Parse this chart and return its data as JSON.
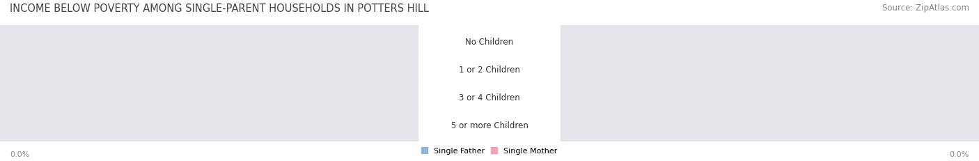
{
  "title": "INCOME BELOW POVERTY AMONG SINGLE-PARENT HOUSEHOLDS IN POTTERS HILL",
  "source": "Source: ZipAtlas.com",
  "categories": [
    "No Children",
    "1 or 2 Children",
    "3 or 4 Children",
    "5 or more Children"
  ],
  "father_values": [
    0.0,
    0.0,
    0.0,
    0.0
  ],
  "mother_values": [
    0.0,
    0.0,
    0.0,
    0.0
  ],
  "father_color": "#92b4d4",
  "mother_color": "#f4a0b5",
  "bar_bg_color": "#e4e4ea",
  "xlim": [
    -100,
    100
  ],
  "x_axis_left_label": "0.0%",
  "x_axis_right_label": "0.0%",
  "legend_father": "Single Father",
  "legend_mother": "Single Mother",
  "title_fontsize": 10.5,
  "source_fontsize": 8.5,
  "label_fontsize": 8.0,
  "category_fontsize": 8.5,
  "bg_color": "#ffffff",
  "bar_value_color": "#ffffff",
  "category_text_color": "#333333",
  "axis_label_color": "#888888"
}
